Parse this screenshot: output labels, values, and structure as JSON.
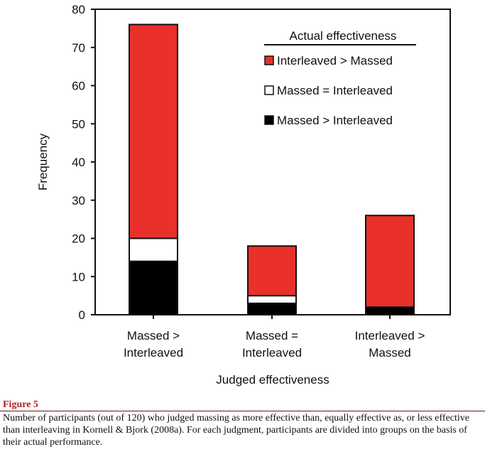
{
  "chart_data": {
    "type": "bar",
    "stacked": true,
    "categories": [
      [
        "Massed >",
        "Interleaved"
      ],
      [
        "Massed =",
        "Interleaved"
      ],
      [
        "Interleaved >",
        "Massed"
      ]
    ],
    "series": [
      {
        "name": "Massed > Interleaved",
        "color": "#000000",
        "values": [
          14,
          3,
          2
        ]
      },
      {
        "name": "Massed = Interleaved",
        "color": "#ffffff",
        "values": [
          6,
          2,
          0
        ]
      },
      {
        "name": "Interleaved > Massed",
        "color": "#e9302b",
        "values": [
          56,
          13,
          24
        ]
      }
    ],
    "legend_title": "Actual effectiveness",
    "legend_order": [
      2,
      1,
      0
    ],
    "legend_position": "top-right",
    "xlabel": "Judged effectiveness",
    "ylabel": "Frequency",
    "ylim": [
      0,
      80
    ],
    "yticks": [
      0,
      10,
      20,
      30,
      40,
      50,
      60,
      70,
      80
    ],
    "grid": false
  },
  "figure": {
    "label": "Figure 5",
    "caption": "Number of participants (out of 120) who judged massing as more effective than, equally effective as, or less effective than interleaving in Kornell & Bjork (2008a). For each judgment, participants are divided into groups on the basis of their actual performance."
  }
}
